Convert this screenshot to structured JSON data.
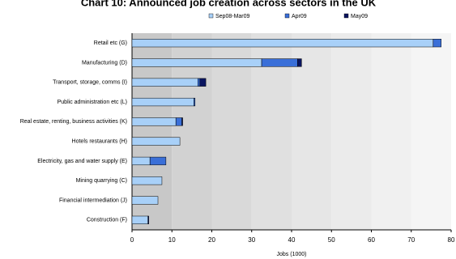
{
  "chart_data": {
    "type": "stacked_barh",
    "title": "Chart 10: Announced job creation across sectors in the UK",
    "xlabel": "Jobs (1000)",
    "categories": [
      "Retail etc (G)",
      "Manufacturing (D)",
      "Transport, storage, comms (I)",
      "Public administration etc (L)",
      "Real estate, renting, business activities (K)",
      "Hotels restaurants (H)",
      "Electricity, gas and water supply (E)",
      "Mining quarrying (C)",
      "Financial intermediation (J)",
      "Construction (F)"
    ],
    "series": [
      {
        "name": "Sep08-Mar09",
        "color": "#a8d0f8",
        "values": [
          75.5,
          32.5,
          16.5,
          15.5,
          11,
          12,
          4.5,
          7.5,
          6.5,
          4
        ]
      },
      {
        "name": "Apr09",
        "color": "#3a6fd8",
        "values": [
          2,
          9,
          0.5,
          0.3,
          1.5,
          0,
          4,
          0,
          0,
          0
        ]
      },
      {
        "name": "May09",
        "color": "#0a1560",
        "values": [
          0,
          1,
          1.5,
          0,
          0.2,
          0,
          0,
          0,
          0,
          0.2
        ]
      }
    ],
    "xlim": [
      0,
      80
    ],
    "xticks": [
      0,
      10,
      20,
      30,
      40,
      50,
      60,
      70,
      80
    ]
  }
}
